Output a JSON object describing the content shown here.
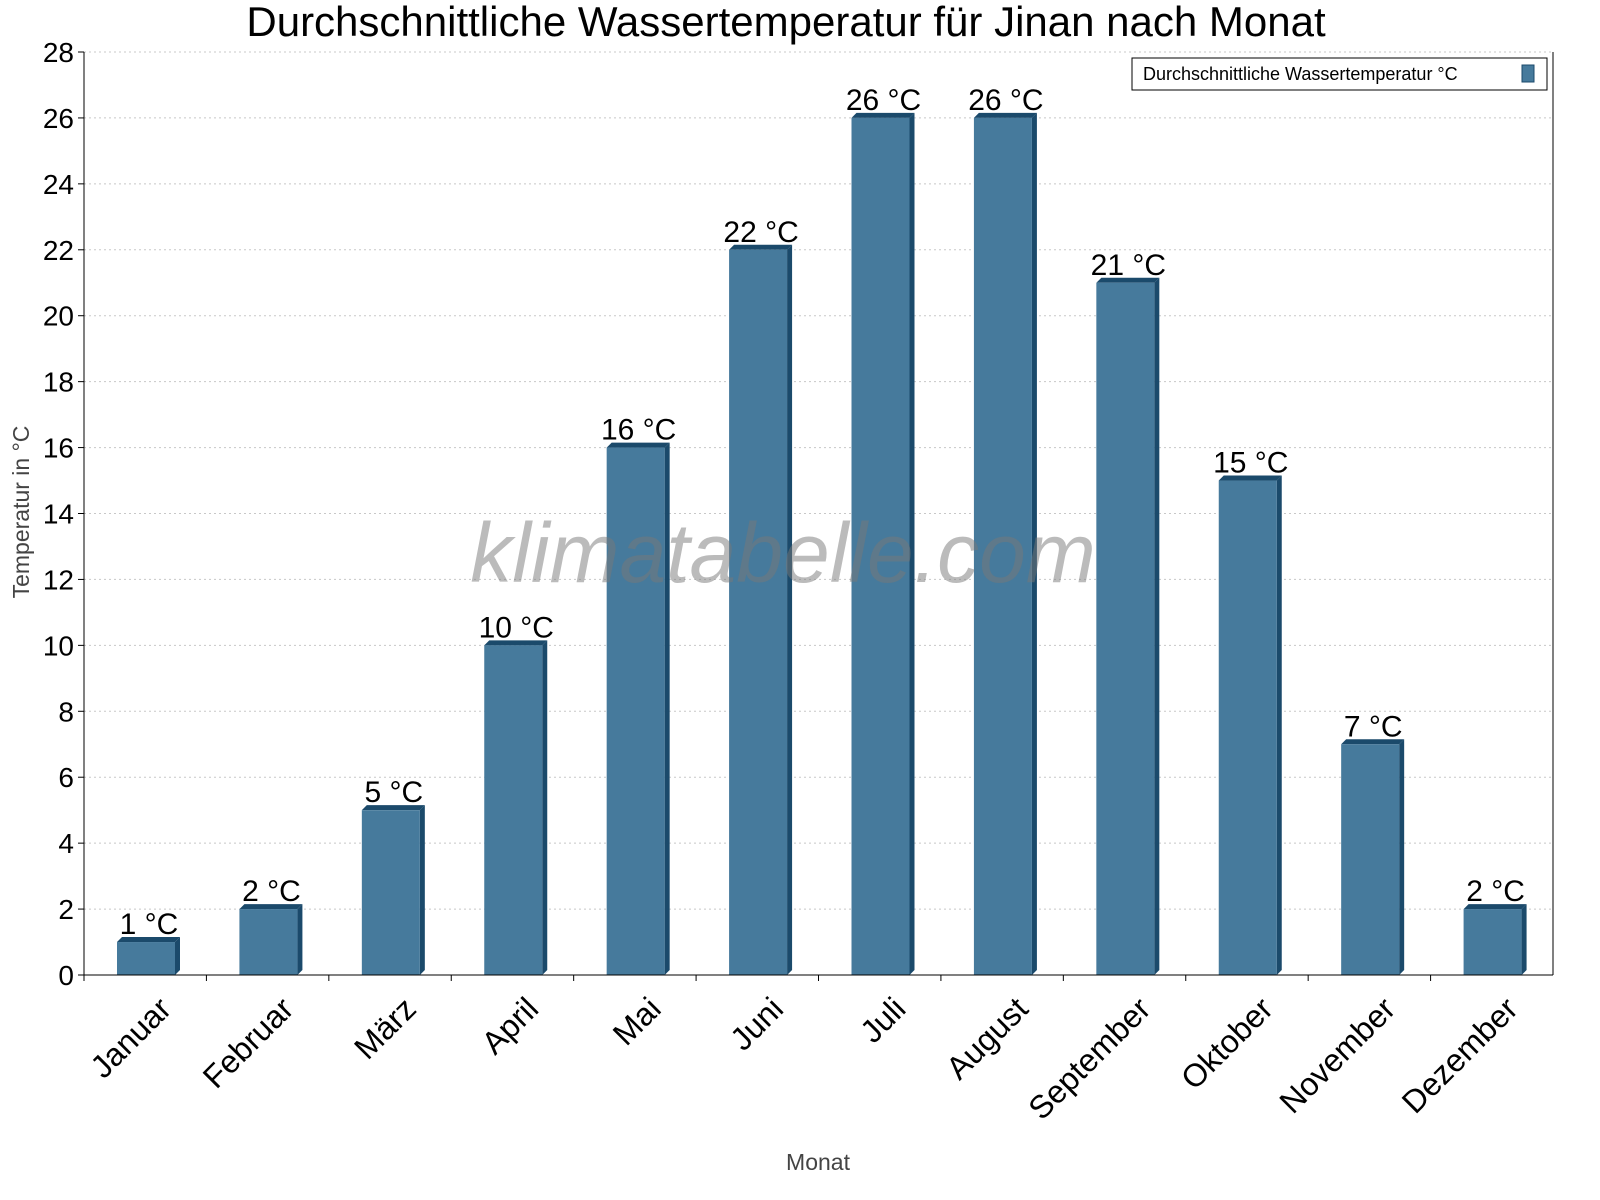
{
  "chart_data": {
    "type": "bar",
    "title": "Durchschnittliche Wassertemperatur für Jinan nach Monat",
    "xlabel": "Monat",
    "ylabel": "Temperatur in °C",
    "ylim": [
      0,
      28
    ],
    "yticks": [
      0,
      2,
      4,
      6,
      8,
      10,
      12,
      14,
      16,
      18,
      20,
      22,
      24,
      26,
      28
    ],
    "grid": true,
    "legend_position": "top-right",
    "categories": [
      "Januar",
      "Februar",
      "März",
      "April",
      "Mai",
      "Juni",
      "Juli",
      "August",
      "September",
      "Oktober",
      "November",
      "Dezember"
    ],
    "series": [
      {
        "name": "Durchschnittliche Wassertemperatur °C",
        "values": [
          1,
          2,
          5,
          10,
          16,
          22,
          26,
          26,
          21,
          15,
          7,
          2
        ],
        "labels": [
          "1 °C",
          "2 °C",
          "5 °C",
          "10 °C",
          "16 °C",
          "22 °C",
          "26 °C",
          "26 °C",
          "21 °C",
          "15 °C",
          "7 °C",
          "2 °C"
        ],
        "color": "#467a9c",
        "side_color": "#1b4a6b"
      }
    ],
    "watermark": "klimatabelle.com"
  }
}
